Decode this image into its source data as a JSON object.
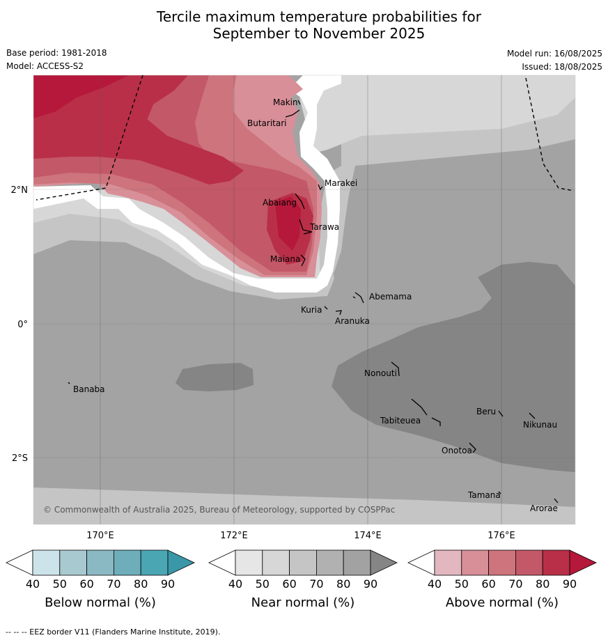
{
  "title_line1": "Tercile maximum temperature probabilities for",
  "title_line2": "September to November 2025",
  "base_period": "Base period: 1981-2018",
  "model": "Model: ACCESS-S2",
  "model_run": "Model run: 16/08/2025",
  "issued": "Issued: 18/08/2025",
  "copyright": "© Commonwealth of Australia 2025, Bureau of Meteorology, supported by COSPPac",
  "footer": "--  --  -- EEZ border V11 (Flanders Marine Institute, 2019).",
  "lon_labels": [
    "170°E",
    "172°E",
    "174°E",
    "176°E"
  ],
  "lat_labels": [
    "2°N",
    "0°",
    "2°S"
  ],
  "islands": [
    "Makin",
    "Butaritari",
    "Marakei",
    "Abaiang",
    "Tarawa",
    "Maiana",
    "Abemama",
    "Kuria",
    "Aranuka",
    "Nonouti",
    "Banaba",
    "Tabiteuea",
    "Beru",
    "Nikunau",
    "Onotoa",
    "Tamana",
    "Arorae"
  ],
  "legends": [
    {
      "label": "Below normal (%)",
      "ticks": [
        "40",
        "50",
        "60",
        "70",
        "80",
        "90"
      ],
      "colors": [
        "#ffffff",
        "#cde3ea",
        "#a9c9d0",
        "#8bb9c3",
        "#6eaebb",
        "#4ba6b4",
        "#3a97a8"
      ]
    },
    {
      "label": "Near normal (%)",
      "ticks": [
        "40",
        "50",
        "60",
        "70",
        "80",
        "90"
      ],
      "colors": [
        "#ffffff",
        "#e6e6e6",
        "#d7d7d7",
        "#c5c5c5",
        "#b1b1b1",
        "#a2a2a2",
        "#858585"
      ]
    },
    {
      "label": "Above normal (%)",
      "ticks": [
        "40",
        "50",
        "60",
        "70",
        "80",
        "90"
      ],
      "colors": [
        "#ffffff",
        "#e2b7bf",
        "#d88f98",
        "#cd747d",
        "#c35868",
        "#b92f48",
        "#b5183a"
      ]
    }
  ]
}
